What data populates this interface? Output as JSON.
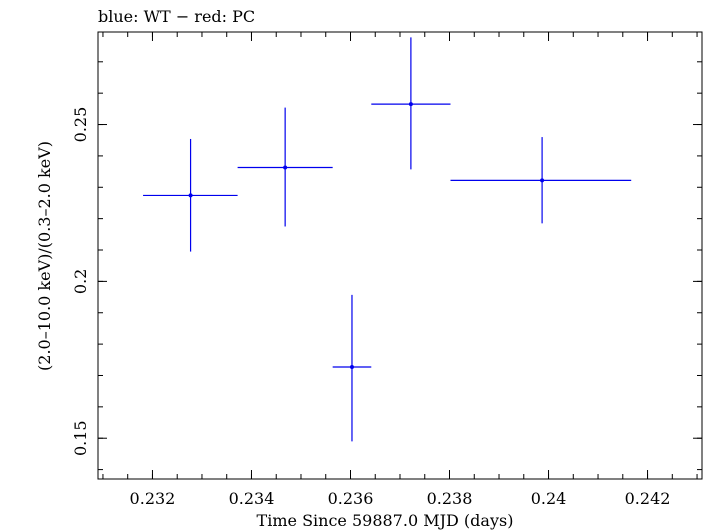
{
  "chart_data": {
    "type": "scatter",
    "title": "blue: WT − red: PC",
    "xlabel": "Time Since 59887.0 MJD (days)",
    "ylabel": "(2.0–10.0 keV)/(0.3–2.0 keV)",
    "xlim": [
      0.2309,
      0.2431
    ],
    "ylim": [
      0.137,
      0.2795
    ],
    "x_ticks": [
      {
        "value": 0.232,
        "label": "0.232"
      },
      {
        "value": 0.234,
        "label": "0.234"
      },
      {
        "value": 0.236,
        "label": "0.236"
      },
      {
        "value": 0.238,
        "label": "0.238"
      },
      {
        "value": 0.24,
        "label": "0.24"
      },
      {
        "value": 0.242,
        "label": "0.242"
      }
    ],
    "y_ticks": [
      {
        "value": 0.15,
        "label": "0.15"
      },
      {
        "value": 0.2,
        "label": "0.2"
      },
      {
        "value": 0.25,
        "label": "0.25"
      }
    ],
    "x_minor_step": 0.0005,
    "y_minor_step": 0.01,
    "grid": false,
    "series": [
      {
        "color": "#0000ee",
        "points": [
          {
            "x": 0.23277,
            "y": 0.2274,
            "xlo": 0.23181,
            "xhi": 0.23372,
            "ylo": 0.2095,
            "yhi": 0.2454
          },
          {
            "x": 0.23468,
            "y": 0.2363,
            "xlo": 0.23372,
            "xhi": 0.23564,
            "ylo": 0.2175,
            "yhi": 0.2554
          },
          {
            "x": 0.23603,
            "y": 0.1727,
            "xlo": 0.23564,
            "xhi": 0.23642,
            "ylo": 0.149,
            "yhi": 0.1957
          },
          {
            "x": 0.23722,
            "y": 0.2565,
            "xlo": 0.23642,
            "xhi": 0.23802,
            "ylo": 0.2357,
            "yhi": 0.2778
          },
          {
            "x": 0.23987,
            "y": 0.2322,
            "xlo": 0.23802,
            "xhi": 0.24167,
            "ylo": 0.2185,
            "yhi": 0.246
          }
        ]
      }
    ]
  }
}
